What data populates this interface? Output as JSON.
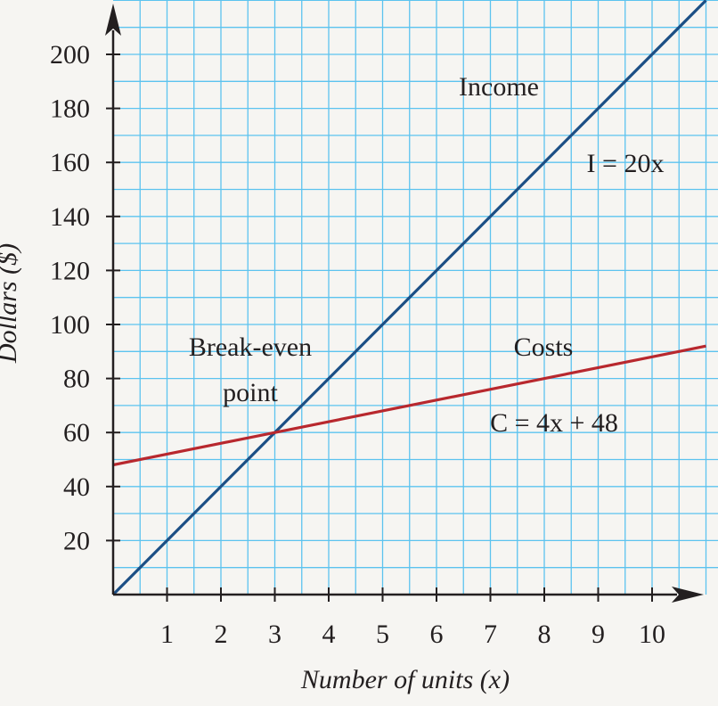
{
  "chart_data": {
    "type": "line",
    "xlabel": "Number of units (x)",
    "ylabel": "Dollars ($)",
    "xlim": [
      0,
      11
    ],
    "ylim": [
      0,
      220
    ],
    "x_ticks": [
      1,
      2,
      3,
      4,
      5,
      6,
      7,
      8,
      9,
      10
    ],
    "y_ticks": [
      20,
      40,
      60,
      80,
      100,
      120,
      140,
      160,
      180,
      200
    ],
    "grid": true,
    "grid_step": {
      "x": 0.5,
      "y": 10
    },
    "series": [
      {
        "name": "Income",
        "equation": "I = 20x",
        "x": [
          0,
          11
        ],
        "y": [
          0,
          220
        ],
        "color": "#1c4f85"
      },
      {
        "name": "Costs",
        "equation": "C = 4x + 48",
        "x": [
          0,
          11
        ],
        "y": [
          48,
          92
        ],
        "color": "#b8282e"
      }
    ],
    "annotations": {
      "break_even_line1": "Break-even",
      "break_even_line2": "point"
    },
    "break_even_point": {
      "x": 3,
      "y": 60
    },
    "colors": {
      "background": "#f6f5f2",
      "grid": "#5cc3ef",
      "axis": "#231f20"
    }
  }
}
